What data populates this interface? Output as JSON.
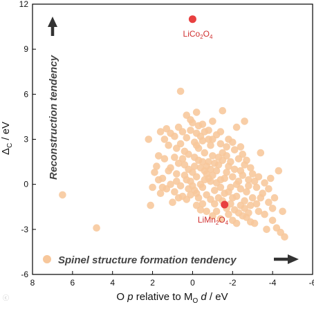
{
  "chart_data": {
    "type": "scatter",
    "xlabel_parts": {
      "pre": "O ",
      "p": "p",
      "mid": " relative to M",
      "sub": "O",
      "space": " ",
      "d": "d",
      "post": " / eV"
    },
    "ylabel_parts": {
      "delta": "Δ",
      "sub": "C",
      "post": " / eV"
    },
    "x_ticks": [
      8,
      6,
      4,
      2,
      0,
      -2,
      -4,
      -6
    ],
    "y_ticks": [
      -6,
      -3,
      0,
      3,
      6,
      9,
      12
    ],
    "xlim": [
      8,
      -6
    ],
    "ylim": [
      -6,
      12
    ],
    "x_reversed": true,
    "grid": false,
    "legend": {
      "label": "Spinel structure formation tendency",
      "position": "bottom-left"
    },
    "annotations": {
      "vertical": "Reconstruction tendency",
      "horizontal": "Spinel structure formation tendency"
    },
    "colors": {
      "candidates": "#f7c79b",
      "highlight": "#e84040",
      "highlight_label": "#d03030",
      "arrow": "#333333"
    },
    "highlighted": [
      {
        "name_main": "LiCo",
        "sub1": "2",
        "mid": "O",
        "sub2": "4",
        "x": 0.0,
        "y": 11.0
      },
      {
        "name_main": "LiMn",
        "sub1": "2",
        "mid": "O",
        "sub2": "4",
        "x": -1.6,
        "y": -1.35
      }
    ],
    "points": [
      [
        6.5,
        -0.7
      ],
      [
        4.8,
        -2.9
      ],
      [
        2.2,
        3.0
      ],
      [
        2.1,
        -1.4
      ],
      [
        1.8,
        1.2
      ],
      [
        1.6,
        -0.6
      ],
      [
        1.5,
        0.4
      ],
      [
        1.4,
        1.7
      ],
      [
        1.3,
        -0.3
      ],
      [
        1.2,
        0.9
      ],
      [
        1.0,
        -1.2
      ],
      [
        0.8,
        0.2
      ],
      [
        0.7,
        1.4
      ],
      [
        0.5,
        -0.8
      ],
      [
        0.4,
        0.6
      ],
      [
        0.2,
        -0.3
      ],
      [
        0.6,
        6.2
      ],
      [
        -0.2,
        4.8
      ],
      [
        0.1,
        4.3
      ],
      [
        0.3,
        4.6
      ],
      [
        0.0,
        4.1
      ],
      [
        -0.3,
        3.9
      ],
      [
        -0.5,
        4.0
      ],
      [
        -1.0,
        4.2
      ],
      [
        -1.5,
        4.9
      ],
      [
        -0.8,
        3.6
      ],
      [
        -1.2,
        3.3
      ],
      [
        -1.8,
        3.0
      ],
      [
        -2.2,
        3.8
      ],
      [
        -2.6,
        4.2
      ],
      [
        1.6,
        3.5
      ],
      [
        1.3,
        3.7
      ],
      [
        1.1,
        3.4
      ],
      [
        0.9,
        3.2
      ],
      [
        0.7,
        3.8
      ],
      [
        0.5,
        3.5
      ],
      [
        0.3,
        3.1
      ],
      [
        0.1,
        3.6
      ],
      [
        -0.1,
        2.8
      ],
      [
        -0.4,
        3.2
      ],
      [
        1.4,
        3.0
      ],
      [
        1.2,
        2.6
      ],
      [
        0.8,
        2.4
      ],
      [
        0.6,
        2.7
      ],
      [
        0.4,
        2.2
      ],
      [
        0.2,
        2.0
      ],
      [
        -0.1,
        1.8
      ],
      [
        -0.3,
        2.4
      ],
      [
        -0.6,
        2.1
      ],
      [
        -0.9,
        2.6
      ],
      [
        1.7,
        0.3
      ],
      [
        1.5,
        -0.2
      ],
      [
        1.1,
        0.0
      ],
      [
        0.9,
        -0.5
      ],
      [
        0.6,
        -0.1
      ],
      [
        0.3,
        0.3
      ],
      [
        0.0,
        0.8
      ],
      [
        -0.2,
        0.5
      ],
      [
        -0.4,
        1.1
      ],
      [
        -0.5,
        -0.2
      ],
      [
        -0.7,
        0.7
      ],
      [
        -0.8,
        1.5
      ],
      [
        -0.9,
        0.2
      ],
      [
        -1.0,
        1.9
      ],
      [
        -1.1,
        -0.4
      ],
      [
        -1.2,
        0.9
      ],
      [
        -1.3,
        1.3
      ],
      [
        -1.4,
        0.3
      ],
      [
        -1.5,
        1.6
      ],
      [
        -1.6,
        -0.6
      ],
      [
        -1.7,
        0.8
      ],
      [
        -1.8,
        1.2
      ],
      [
        -1.9,
        -0.2
      ],
      [
        -2.0,
        0.5
      ],
      [
        -2.1,
        1.0
      ],
      [
        -2.2,
        -0.8
      ],
      [
        -2.3,
        0.2
      ],
      [
        -2.4,
        -0.3
      ],
      [
        -2.5,
        0.6
      ],
      [
        -2.6,
        -1.1
      ],
      [
        -2.7,
        -0.5
      ],
      [
        -2.8,
        0.3
      ],
      [
        -2.9,
        -1.4
      ],
      [
        -3.0,
        -0.9
      ],
      [
        -3.2,
        -0.2
      ],
      [
        -3.3,
        -1.8
      ],
      [
        -3.5,
        -0.6
      ],
      [
        -3.6,
        -2.0
      ],
      [
        -3.8,
        -1.2
      ],
      [
        -4.0,
        -2.4
      ],
      [
        -4.2,
        -2.9
      ],
      [
        -4.4,
        -3.2
      ],
      [
        -4.6,
        -3.5
      ],
      [
        -4.5,
        -1.8
      ],
      [
        -4.1,
        -0.9
      ],
      [
        -3.9,
        0.4
      ],
      [
        -3.4,
        2.1
      ],
      [
        -4.3,
        0.9
      ],
      [
        -3.7,
        -3.0
      ],
      [
        -3.1,
        -2.6
      ],
      [
        -0.5,
        1.5
      ],
      [
        -0.7,
        -0.7
      ],
      [
        -0.9,
        -1.0
      ],
      [
        -1.1,
        -1.3
      ],
      [
        -1.3,
        -0.9
      ],
      [
        -1.5,
        -1.1
      ],
      [
        -1.7,
        -1.6
      ],
      [
        -1.9,
        -1.3
      ],
      [
        -2.1,
        -1.7
      ],
      [
        -2.3,
        -1.9
      ],
      [
        -2.5,
        -2.1
      ],
      [
        -2.7,
        -2.2
      ],
      [
        -2.9,
        -2.5
      ],
      [
        -0.2,
        -0.6
      ],
      [
        0.0,
        -0.1
      ],
      [
        -0.1,
        1.2
      ],
      [
        -0.3,
        1.6
      ],
      [
        -0.6,
        0.9
      ],
      [
        -0.8,
        0.4
      ],
      [
        -1.0,
        0.6
      ],
      [
        -1.2,
        0.1
      ],
      [
        -1.4,
        -0.2
      ],
      [
        -1.6,
        0.4
      ],
      [
        -1.8,
        -0.5
      ],
      [
        -2.0,
        -0.9
      ],
      [
        -2.2,
        0.0
      ],
      [
        -2.4,
        0.9
      ],
      [
        -2.6,
        1.3
      ],
      [
        -2.8,
        -0.1
      ],
      [
        -3.0,
        0.7
      ],
      [
        0.4,
        1.3
      ],
      [
        0.2,
        1.0
      ],
      [
        0.1,
        0.2
      ],
      [
        -0.1,
        -0.4
      ],
      [
        -0.4,
        0.0
      ],
      [
        -0.6,
        0.3
      ],
      [
        -0.7,
        1.2
      ],
      [
        -0.9,
        1.0
      ],
      [
        -1.1,
        1.4
      ],
      [
        -1.3,
        1.8
      ],
      [
        -1.5,
        2.1
      ],
      [
        -1.7,
        1.9
      ],
      [
        -1.9,
        1.5
      ],
      [
        -2.1,
        2.3
      ],
      [
        -2.3,
        1.7
      ],
      [
        -2.5,
        2.0
      ],
      [
        -0.2,
        2.6
      ],
      [
        -0.5,
        2.9
      ],
      [
        -0.8,
        3.0
      ],
      [
        -1.4,
        2.7
      ],
      [
        1.9,
        0.8
      ],
      [
        2.0,
        -0.2
      ],
      [
        1.7,
        1.9
      ],
      [
        0.5,
        1.7
      ],
      [
        0.7,
        -0.9
      ],
      [
        0.3,
        -1.0
      ],
      [
        -0.3,
        -0.9
      ],
      [
        -0.5,
        -1.3
      ],
      [
        -0.7,
        -1.8
      ],
      [
        -1.0,
        -2.1
      ],
      [
        -1.2,
        -1.8
      ],
      [
        -1.4,
        -2.3
      ],
      [
        -1.8,
        -2.0
      ],
      [
        -2.0,
        -2.4
      ],
      [
        -2.2,
        -2.6
      ],
      [
        -2.4,
        -1.4
      ],
      [
        -2.6,
        -1.6
      ],
      [
        -2.8,
        -1.9
      ],
      [
        -3.2,
        -1.3
      ],
      [
        -3.4,
        -0.9
      ],
      [
        -0.2,
        3.4
      ],
      [
        -0.6,
        3.5
      ],
      [
        -1.0,
        3.0
      ],
      [
        -1.4,
        3.5
      ],
      [
        -1.7,
        2.5
      ],
      [
        -2.0,
        2.8
      ],
      [
        -2.4,
        2.5
      ],
      [
        0.9,
        1.8
      ],
      [
        1.1,
        1.1
      ],
      [
        0.8,
        0.7
      ],
      [
        -3.6,
        0.1
      ],
      [
        -3.8,
        -0.3
      ],
      [
        -4.0,
        -1.6
      ],
      [
        -3.3,
        0.5
      ],
      [
        -2.9,
        1.1
      ],
      [
        -2.7,
        1.6
      ],
      [
        -3.1,
        0.2
      ],
      [
        -0.4,
        -1.7
      ],
      [
        -0.2,
        -1.4
      ],
      [
        0.1,
        -0.7
      ]
    ]
  }
}
